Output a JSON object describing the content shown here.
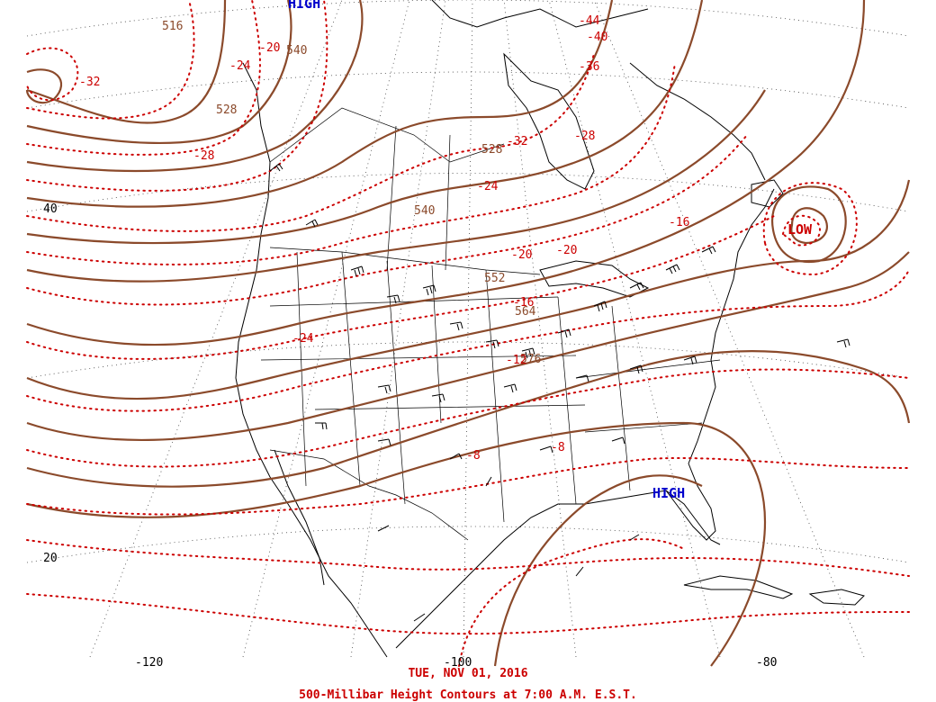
{
  "date_label": "TUE, NOV 01, 2016",
  "title": "500-Millibar Height Contours at 7:00 A.M. E.S.T.",
  "pressure_centers": [
    {
      "type": "HIGH",
      "label": "HIGH"
    },
    {
      "type": "HIGH",
      "label": "HIGH"
    },
    {
      "type": "LOW",
      "label": "LOW"
    }
  ],
  "height_contour_labels": [
    "516",
    "540",
    "528",
    "528",
    "540",
    "552",
    "564",
    "576"
  ],
  "temperature_labels": [
    "-32",
    "-20",
    "-24",
    "-28",
    "-44",
    "-40",
    "-36",
    "-32",
    "-28",
    "-24",
    "-20",
    "-20",
    "-16",
    "-16",
    "-24",
    "-12",
    "-8",
    "-8"
  ],
  "latitude_labels": [
    "40",
    "20"
  ],
  "longitude_labels": [
    "-120",
    "-100",
    "-80"
  ],
  "colors": {
    "height_contours": "#8b4a2b",
    "temperature_isotherms": "#cc0000",
    "high_label": "#0000cc",
    "low_label": "#cc0000",
    "caption": "#cc0000"
  }
}
